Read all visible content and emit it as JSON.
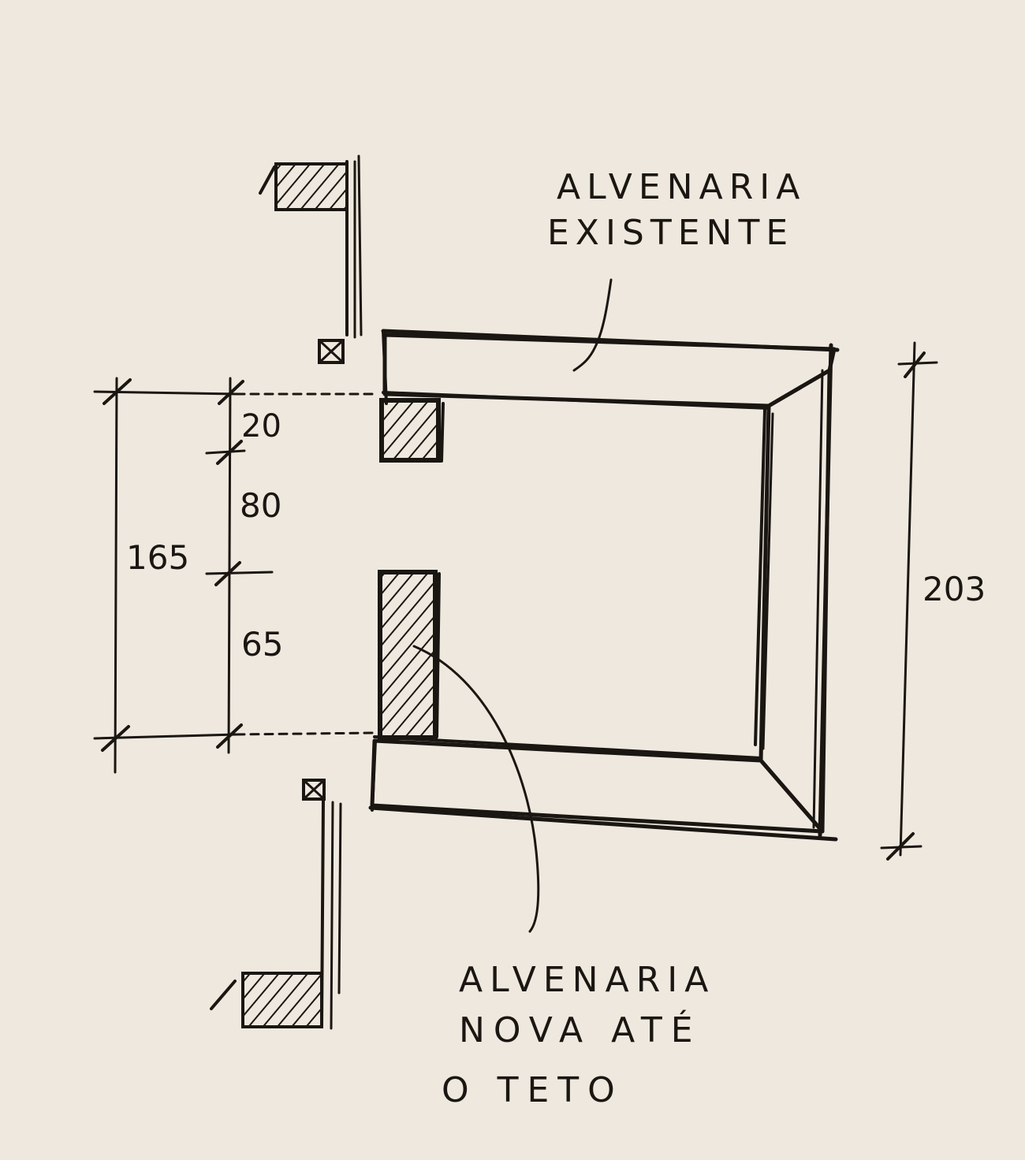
{
  "labels": {
    "existing_wall_line1": "ALVENARIA",
    "existing_wall_line2": "EXISTENTE",
    "new_wall_line1": "ALVENARIA",
    "new_wall_line2": "NOVA ATÉ",
    "new_wall_line3": "O TETO"
  },
  "dimensions": {
    "total_opening": "165",
    "top_segment": "20",
    "middle_segment": "80",
    "bottom_segment": "65",
    "overall_height": "203"
  },
  "colors": {
    "paper": "#efe8de",
    "ink": "#1a1612",
    "hatch_fill": "#2a241e"
  }
}
